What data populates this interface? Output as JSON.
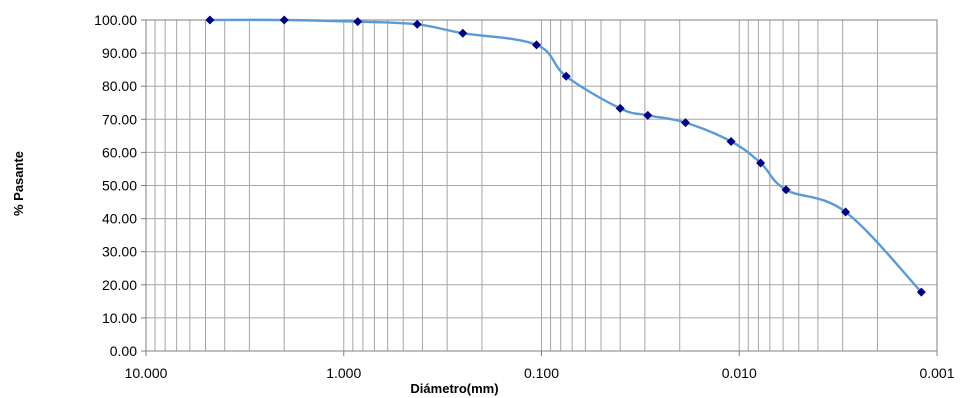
{
  "chart_data": {
    "type": "line",
    "title": "",
    "xlabel": "Diámetro(mm)",
    "ylabel": "% Pasante",
    "x_scale": "log",
    "x_reversed": true,
    "xlim": [
      10.0,
      0.001
    ],
    "ylim": [
      0,
      100
    ],
    "x_ticks": [
      "10.000",
      "1.000",
      "0.100",
      "0.010",
      "0.001"
    ],
    "y_ticks": [
      "0.00",
      "10.00",
      "20.00",
      "30.00",
      "40.00",
      "50.00",
      "60.00",
      "70.00",
      "80.00",
      "90.00",
      "100.00"
    ],
    "grid": true,
    "legend": "none",
    "line_color": "#5b9bd5",
    "marker_color": "#000080",
    "series": [
      {
        "x": [
          4.75,
          2.0,
          0.85,
          0.425,
          0.25,
          0.106,
          0.075,
          0.04,
          0.029,
          0.0187,
          0.011,
          0.0078,
          0.0058,
          0.0029,
          0.0012
        ],
        "y": [
          100.0,
          100.0,
          99.5,
          98.7,
          96.0,
          92.5,
          83.0,
          73.3,
          71.2,
          69.0,
          63.3,
          56.8,
          48.7,
          42.0,
          17.8
        ]
      }
    ]
  }
}
